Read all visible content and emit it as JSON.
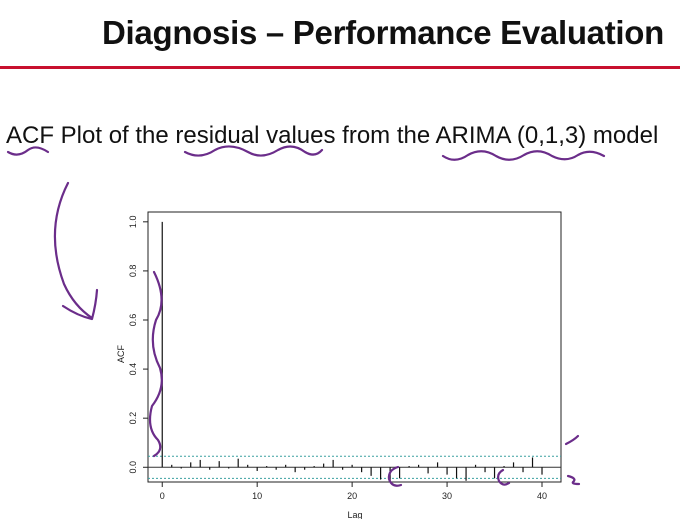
{
  "slide": {
    "title": "Diagnosis – Performance Evaluation",
    "subtitle": "ACF Plot of the residual values from the ARIMA (0,1,3) model",
    "accent_color": "#c8102e",
    "annotation_color": "#6b2d8a"
  },
  "chart_data": {
    "type": "bar",
    "xlabel": "Lag",
    "ylabel": "ACF",
    "xlim": [
      -1.5,
      42
    ],
    "ylim": [
      -0.06,
      1.04
    ],
    "x_ticks": [
      0,
      10,
      20,
      30,
      40
    ],
    "y_ticks": [
      0.0,
      0.2,
      0.4,
      0.6,
      0.8,
      1.0
    ],
    "x_tick_labels": [
      "0",
      "10",
      "20",
      "30",
      "40"
    ],
    "y_tick_labels": [
      "0.0",
      "0.2",
      "0.4",
      "0.6",
      "0.8",
      "1.0"
    ],
    "confidence_bound": 0.045,
    "grid": false,
    "lags": [
      0,
      1,
      2,
      3,
      4,
      5,
      6,
      7,
      8,
      9,
      10,
      11,
      12,
      13,
      14,
      15,
      16,
      17,
      18,
      19,
      20,
      21,
      22,
      23,
      24,
      25,
      26,
      27,
      28,
      29,
      30,
      31,
      32,
      33,
      34,
      35,
      36,
      37,
      38,
      39,
      40
    ],
    "values": [
      1.0,
      0.01,
      -0.005,
      0.02,
      0.03,
      -0.01,
      0.025,
      -0.005,
      0.035,
      0.01,
      -0.015,
      0.005,
      -0.01,
      0.01,
      -0.02,
      -0.01,
      0.005,
      0.015,
      0.03,
      -0.01,
      0.01,
      -0.02,
      -0.035,
      -0.05,
      -0.06,
      -0.045,
      0.005,
      0.01,
      -0.025,
      0.02,
      -0.03,
      -0.045,
      -0.055,
      0.01,
      -0.02,
      -0.045,
      0.005,
      0.02,
      -0.02,
      0.04,
      -0.03
    ]
  }
}
